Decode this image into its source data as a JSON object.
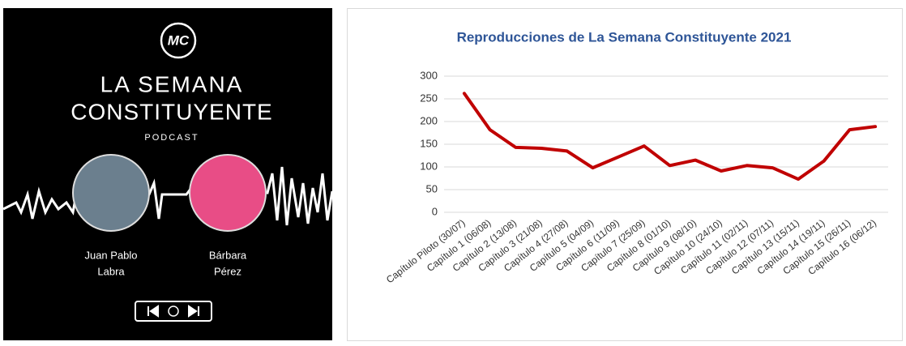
{
  "cover": {
    "logo": "MC",
    "title_line1": "LA SEMANA",
    "title_line2": "CONSTITUYENTE",
    "subtitle": "PODCAST",
    "hosts": [
      {
        "name_line1": "Juan Pablo",
        "name_line2": "Labra"
      },
      {
        "name_line1": "Bárbara",
        "name_line2": "Pérez"
      }
    ]
  },
  "chart_data": {
    "type": "line",
    "title": "Reproducciones de La Semana Constituyente 2021",
    "categories": [
      "Capítulo Piloto (30/07)",
      "Capítulo 1 (06/08)",
      "Capítulo 2 (13/08)",
      "Capítulo 3 (21/08)",
      "Capítulo 4 (27/08)",
      "Capítulo 5 (04/09)",
      "Capítulo 6 (11/09)",
      "Capítulo 7 (25/09)",
      "Capítulo 8 (01/10)",
      "Capítulo 9 (08/10)",
      "Capítulo 10 (24/10)",
      "Capítulo 11 (02/11)",
      "Capítulo 12 (07/11)",
      "Capítulo 13 (15/11)",
      "Capítulo 14 (19/11)",
      "Capítulo 15 (26/11)",
      "Capítulo 16 (06/12)"
    ],
    "values": [
      262,
      182,
      143,
      141,
      135,
      98,
      122,
      146,
      103,
      115,
      91,
      103,
      98,
      73,
      113,
      182,
      189
    ],
    "color": "#c00000",
    "ylim": [
      0,
      300
    ],
    "yticks": [
      0,
      50,
      100,
      150,
      200,
      250,
      300
    ],
    "grid": true
  }
}
